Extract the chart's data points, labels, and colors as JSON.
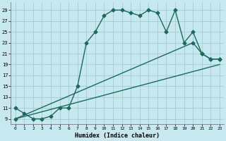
{
  "xlabel": "Humidex (Indice chaleur)",
  "bg_color": "#c8e8f0",
  "grid_color": "#a0ccd8",
  "line_color": "#1a6b5a",
  "xlim": [
    -0.5,
    23.5
  ],
  "ylim": [
    8.0,
    30.5
  ],
  "yticks": [
    9,
    11,
    13,
    15,
    17,
    19,
    21,
    23,
    25,
    27,
    29
  ],
  "xticks": [
    0,
    1,
    2,
    3,
    4,
    5,
    6,
    7,
    8,
    9,
    10,
    11,
    12,
    13,
    14,
    15,
    16,
    17,
    18,
    19,
    20,
    21,
    22,
    23
  ],
  "curve1_x": [
    0,
    1,
    2,
    3,
    4,
    5,
    6,
    7,
    8,
    9,
    10,
    11,
    12,
    13,
    14,
    15,
    16,
    17,
    18,
    19,
    20,
    21,
    22,
    23
  ],
  "curve1_y": [
    11,
    10,
    9,
    9,
    9.5,
    11,
    11,
    15,
    23,
    25,
    28,
    29,
    29,
    28.5,
    28,
    29,
    28.5,
    25,
    29,
    23,
    25,
    21,
    20,
    20
  ],
  "line2_x": [
    0,
    20,
    21,
    22,
    23
  ],
  "line2_y": [
    9,
    23,
    21,
    20,
    20
  ],
  "line3_x": [
    0,
    23
  ],
  "line3_y": [
    9,
    19
  ],
  "markersize": 2.5,
  "linewidth": 1.0
}
